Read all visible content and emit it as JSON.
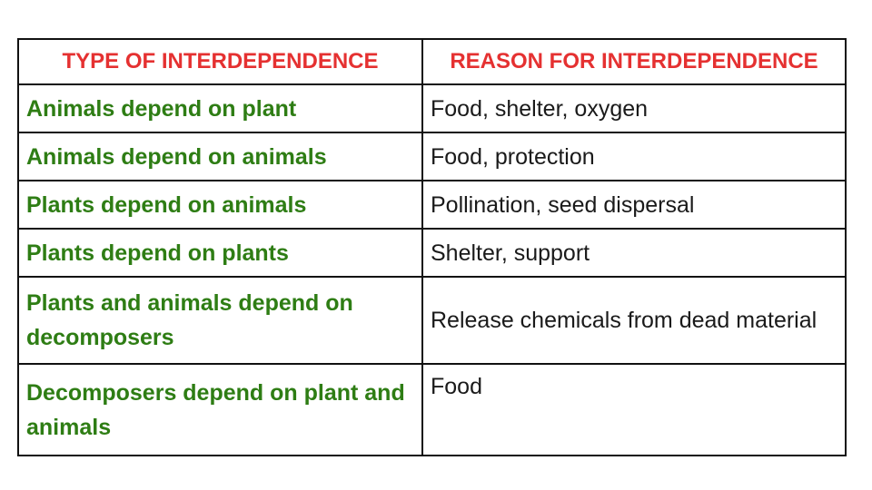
{
  "table": {
    "headers": [
      "TYPE OF INTERDEPENDENCE",
      "REASON FOR INTERDEPENDENCE"
    ],
    "rows": [
      {
        "type": "Animals depend on plant",
        "reason": "Food, shelter, oxygen"
      },
      {
        "type": "Animals depend on animals",
        "reason": "Food, protection"
      },
      {
        "type": "Plants depend on animals",
        "reason": "Pollination, seed dispersal"
      },
      {
        "type": "Plants depend on plants",
        "reason": "Shelter, support"
      },
      {
        "type": "Plants and animals depend on decomposers",
        "reason": "Release chemicals from dead material"
      },
      {
        "type": "Decomposers depend on plant and animals",
        "reason": "Food"
      }
    ]
  },
  "colors": {
    "header_text": "#e53131",
    "type_text": "#2e7d14",
    "reason_text": "#1a1a1a",
    "border": "#111111"
  }
}
